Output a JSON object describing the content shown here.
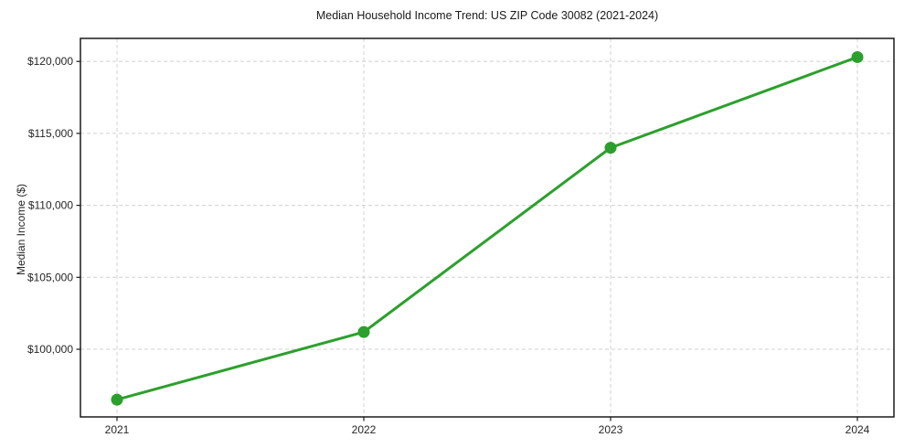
{
  "figure": {
    "background": "#ffffff"
  },
  "chart_data": {
    "type": "line",
    "title": "Median Household Income Trend: US ZIP Code 30082 (2021-2024)",
    "xlabel": "",
    "ylabel": "Median Income ($)",
    "categories": [
      "2021",
      "2022",
      "2023",
      "2024"
    ],
    "series": [
      {
        "name": "Median Household Income",
        "values": [
          96500,
          101200,
          114000,
          120300
        ]
      }
    ],
    "ylim": [
      95300,
      121600
    ],
    "yticks": {
      "values": [
        100000,
        105000,
        110000,
        115000,
        120000
      ],
      "labels": [
        "$100,000",
        "$105,000",
        "$110,000",
        "$115,000",
        "$120,000"
      ]
    },
    "grid": true,
    "grid_style": "dashed",
    "legend_position": "none",
    "colors": {
      "line": "#2ca02c",
      "marker": "#2ca02c",
      "grid": "#d0d0d0",
      "axis": "#1a1a1a",
      "tick_text": "#262626",
      "title_text": "#1a1a1a"
    }
  }
}
